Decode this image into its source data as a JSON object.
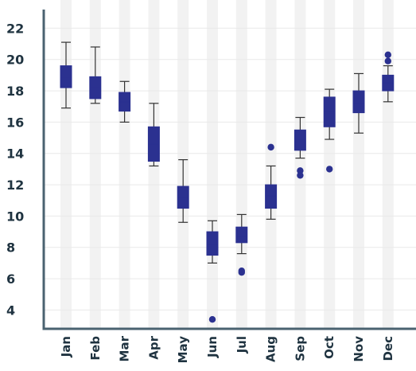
{
  "chart_data": {
    "type": "box",
    "title": "",
    "xlabel": "",
    "ylabel": "",
    "ylim": [
      2.8,
      23.8
    ],
    "y_ticks": [
      4,
      6,
      8,
      10,
      12,
      14,
      16,
      18,
      20,
      22
    ],
    "grid": true,
    "categories": [
      "Jan",
      "Feb",
      "Mar",
      "Apr",
      "May",
      "Jun",
      "Jul",
      "Aug",
      "Sep",
      "Oct",
      "Nov",
      "Dec"
    ],
    "boxes": [
      {
        "min": 16.9,
        "q1": 18.2,
        "median": 18.9,
        "q3": 19.6,
        "max": 21.1,
        "outliers": []
      },
      {
        "min": 17.2,
        "q1": 17.5,
        "median": 18.2,
        "q3": 18.9,
        "max": 20.8,
        "outliers": []
      },
      {
        "min": 16.0,
        "q1": 16.7,
        "median": 17.3,
        "q3": 17.9,
        "max": 18.6,
        "outliers": []
      },
      {
        "min": 13.2,
        "q1": 13.5,
        "median": 14.6,
        "q3": 15.7,
        "max": 17.2,
        "outliers": []
      },
      {
        "min": 9.6,
        "q1": 10.5,
        "median": 11.2,
        "q3": 11.9,
        "max": 13.6,
        "outliers": []
      },
      {
        "min": 7.0,
        "q1": 7.5,
        "median": 8.2,
        "q3": 9.0,
        "max": 9.7,
        "outliers": [
          3.4
        ]
      },
      {
        "min": 7.6,
        "q1": 8.3,
        "median": 8.7,
        "q3": 9.3,
        "max": 10.1,
        "outliers": [
          6.5,
          6.4
        ]
      },
      {
        "min": 9.8,
        "q1": 10.5,
        "median": 11.3,
        "q3": 12.0,
        "max": 13.2,
        "outliers": [
          14.4
        ]
      },
      {
        "min": 13.7,
        "q1": 14.2,
        "median": 14.9,
        "q3": 15.5,
        "max": 16.3,
        "outliers": [
          12.9,
          12.6
        ]
      },
      {
        "min": 14.9,
        "q1": 15.7,
        "median": 16.6,
        "q3": 17.6,
        "max": 18.1,
        "outliers": [
          13.0
        ]
      },
      {
        "min": 15.3,
        "q1": 16.6,
        "median": 17.2,
        "q3": 18.0,
        "max": 19.1,
        "outliers": []
      },
      {
        "min": 17.3,
        "q1": 18.0,
        "median": 18.5,
        "q3": 19.0,
        "max": 19.6,
        "outliers": [
          20.3,
          19.9
        ]
      }
    ],
    "colors": {
      "box": "#2b3190",
      "whisker": "#333333",
      "axis": "#4a6270",
      "band": "#f2f2f2",
      "grid": "#e9e9e9"
    }
  }
}
